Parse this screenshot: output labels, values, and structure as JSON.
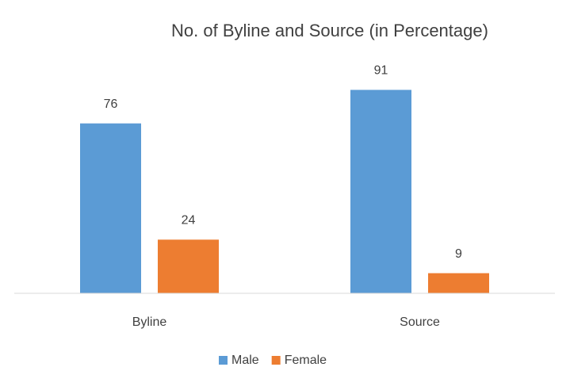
{
  "chart_data": {
    "type": "bar",
    "title": "No. of Byline and Source (in Percentage)",
    "categories": [
      "Byline",
      "Source"
    ],
    "series": [
      {
        "name": "Male",
        "color": "#5b9bd5",
        "values": [
          76,
          91
        ]
      },
      {
        "name": "Female",
        "color": "#ed7d31",
        "values": [
          24,
          9
        ]
      }
    ],
    "ylim": [
      0,
      100
    ],
    "legend": "bottom"
  }
}
